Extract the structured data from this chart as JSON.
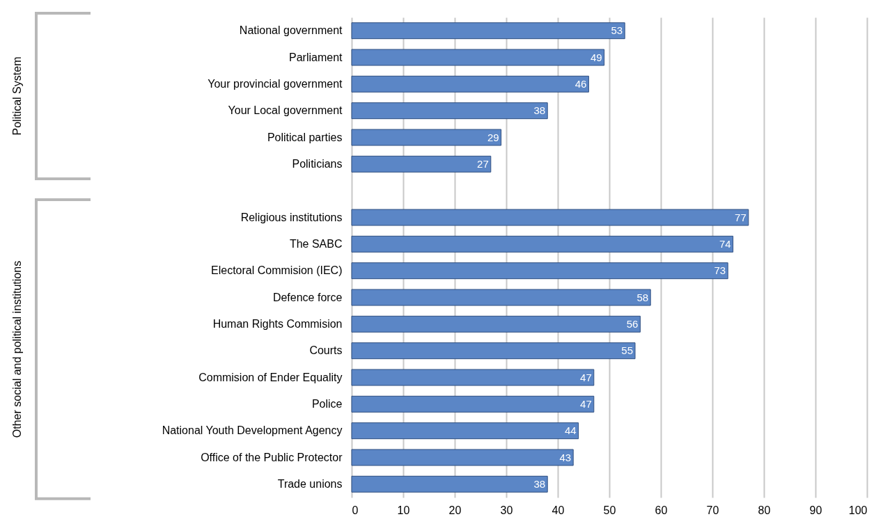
{
  "chart_data": {
    "type": "bar",
    "orientation": "horizontal",
    "categories": [
      "National government",
      "Parliament",
      "Your provincial government",
      "Your Local government",
      "Political parties",
      "Politicians",
      null,
      "Religious institutions",
      "The SABC",
      "Electoral Commision (IEC)",
      "Defence force",
      "Human Rights Commision",
      "Courts",
      "Commision of Ender Equality",
      "Police",
      "National Youth Development Agency",
      "Office of the Public Protector",
      "Trade unions"
    ],
    "values": [
      53,
      49,
      46,
      38,
      29,
      27,
      null,
      77,
      74,
      73,
      58,
      56,
      55,
      47,
      47,
      44,
      43,
      38
    ],
    "color": "#5b86c6",
    "xlim": [
      0,
      100
    ],
    "xticks": [
      0,
      10,
      20,
      30,
      40,
      50,
      60,
      70,
      80,
      90,
      100
    ],
    "grid": "x",
    "data_labels": true,
    "annotations": [
      "Political System",
      "Other social and political institutions"
    ]
  }
}
